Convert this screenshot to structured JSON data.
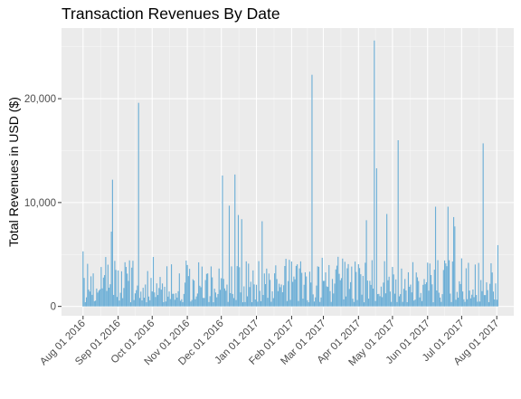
{
  "chart_data": {
    "type": "bar",
    "title": "Transaction Revenues By Date",
    "xlabel": "",
    "ylabel": "Total Revenues in USD ($)",
    "ylim": [
      -900,
      26800
    ],
    "y_ticks": [
      0,
      10000,
      20000
    ],
    "y_tick_labels": [
      "0",
      "10,000",
      "20,000"
    ],
    "x_range_days": [
      -19,
      380
    ],
    "x_start_date": "2016-08-01",
    "x_end_date": "2017-08-01",
    "x_ticks_days": [
      0,
      31,
      61,
      92,
      122,
      153,
      184,
      212,
      243,
      273,
      304,
      334,
      365
    ],
    "x_tick_labels": [
      "Aug 01 2016",
      "Sep 01 2016",
      "Oct 01 2016",
      "Nov 01 2016",
      "Dec 01 2016",
      "Jan 01 2017",
      "Feb 01 2017",
      "Mar 01 2017",
      "Apr 01 2017",
      "May 01 2017",
      "Jun 01 2017",
      "Jul 01 2017",
      "Aug 01 2017"
    ],
    "bar_color": "#6baed6",
    "panel_color": "#ebebeb",
    "grid": true,
    "notable_values": [
      {
        "day": 0,
        "value": 5300
      },
      {
        "day": 25,
        "value": 7200
      },
      {
        "day": 26,
        "value": 12200
      },
      {
        "day": 49,
        "value": 19600
      },
      {
        "day": 123,
        "value": 12600
      },
      {
        "day": 129,
        "value": 9700
      },
      {
        "day": 134,
        "value": 12700
      },
      {
        "day": 137,
        "value": 8800
      },
      {
        "day": 140,
        "value": 8400
      },
      {
        "day": 158,
        "value": 8200
      },
      {
        "day": 202,
        "value": 22300
      },
      {
        "day": 250,
        "value": 8300
      },
      {
        "day": 257,
        "value": 25600
      },
      {
        "day": 259,
        "value": 13300
      },
      {
        "day": 268,
        "value": 8900
      },
      {
        "day": 278,
        "value": 16000
      },
      {
        "day": 311,
        "value": 9600
      },
      {
        "day": 322,
        "value": 9600
      },
      {
        "day": 327,
        "value": 8600
      },
      {
        "day": 328,
        "value": 7700
      },
      {
        "day": 353,
        "value": 15700
      },
      {
        "day": 366,
        "value": 5900
      }
    ],
    "typical_range": [
      400,
      4800
    ]
  }
}
